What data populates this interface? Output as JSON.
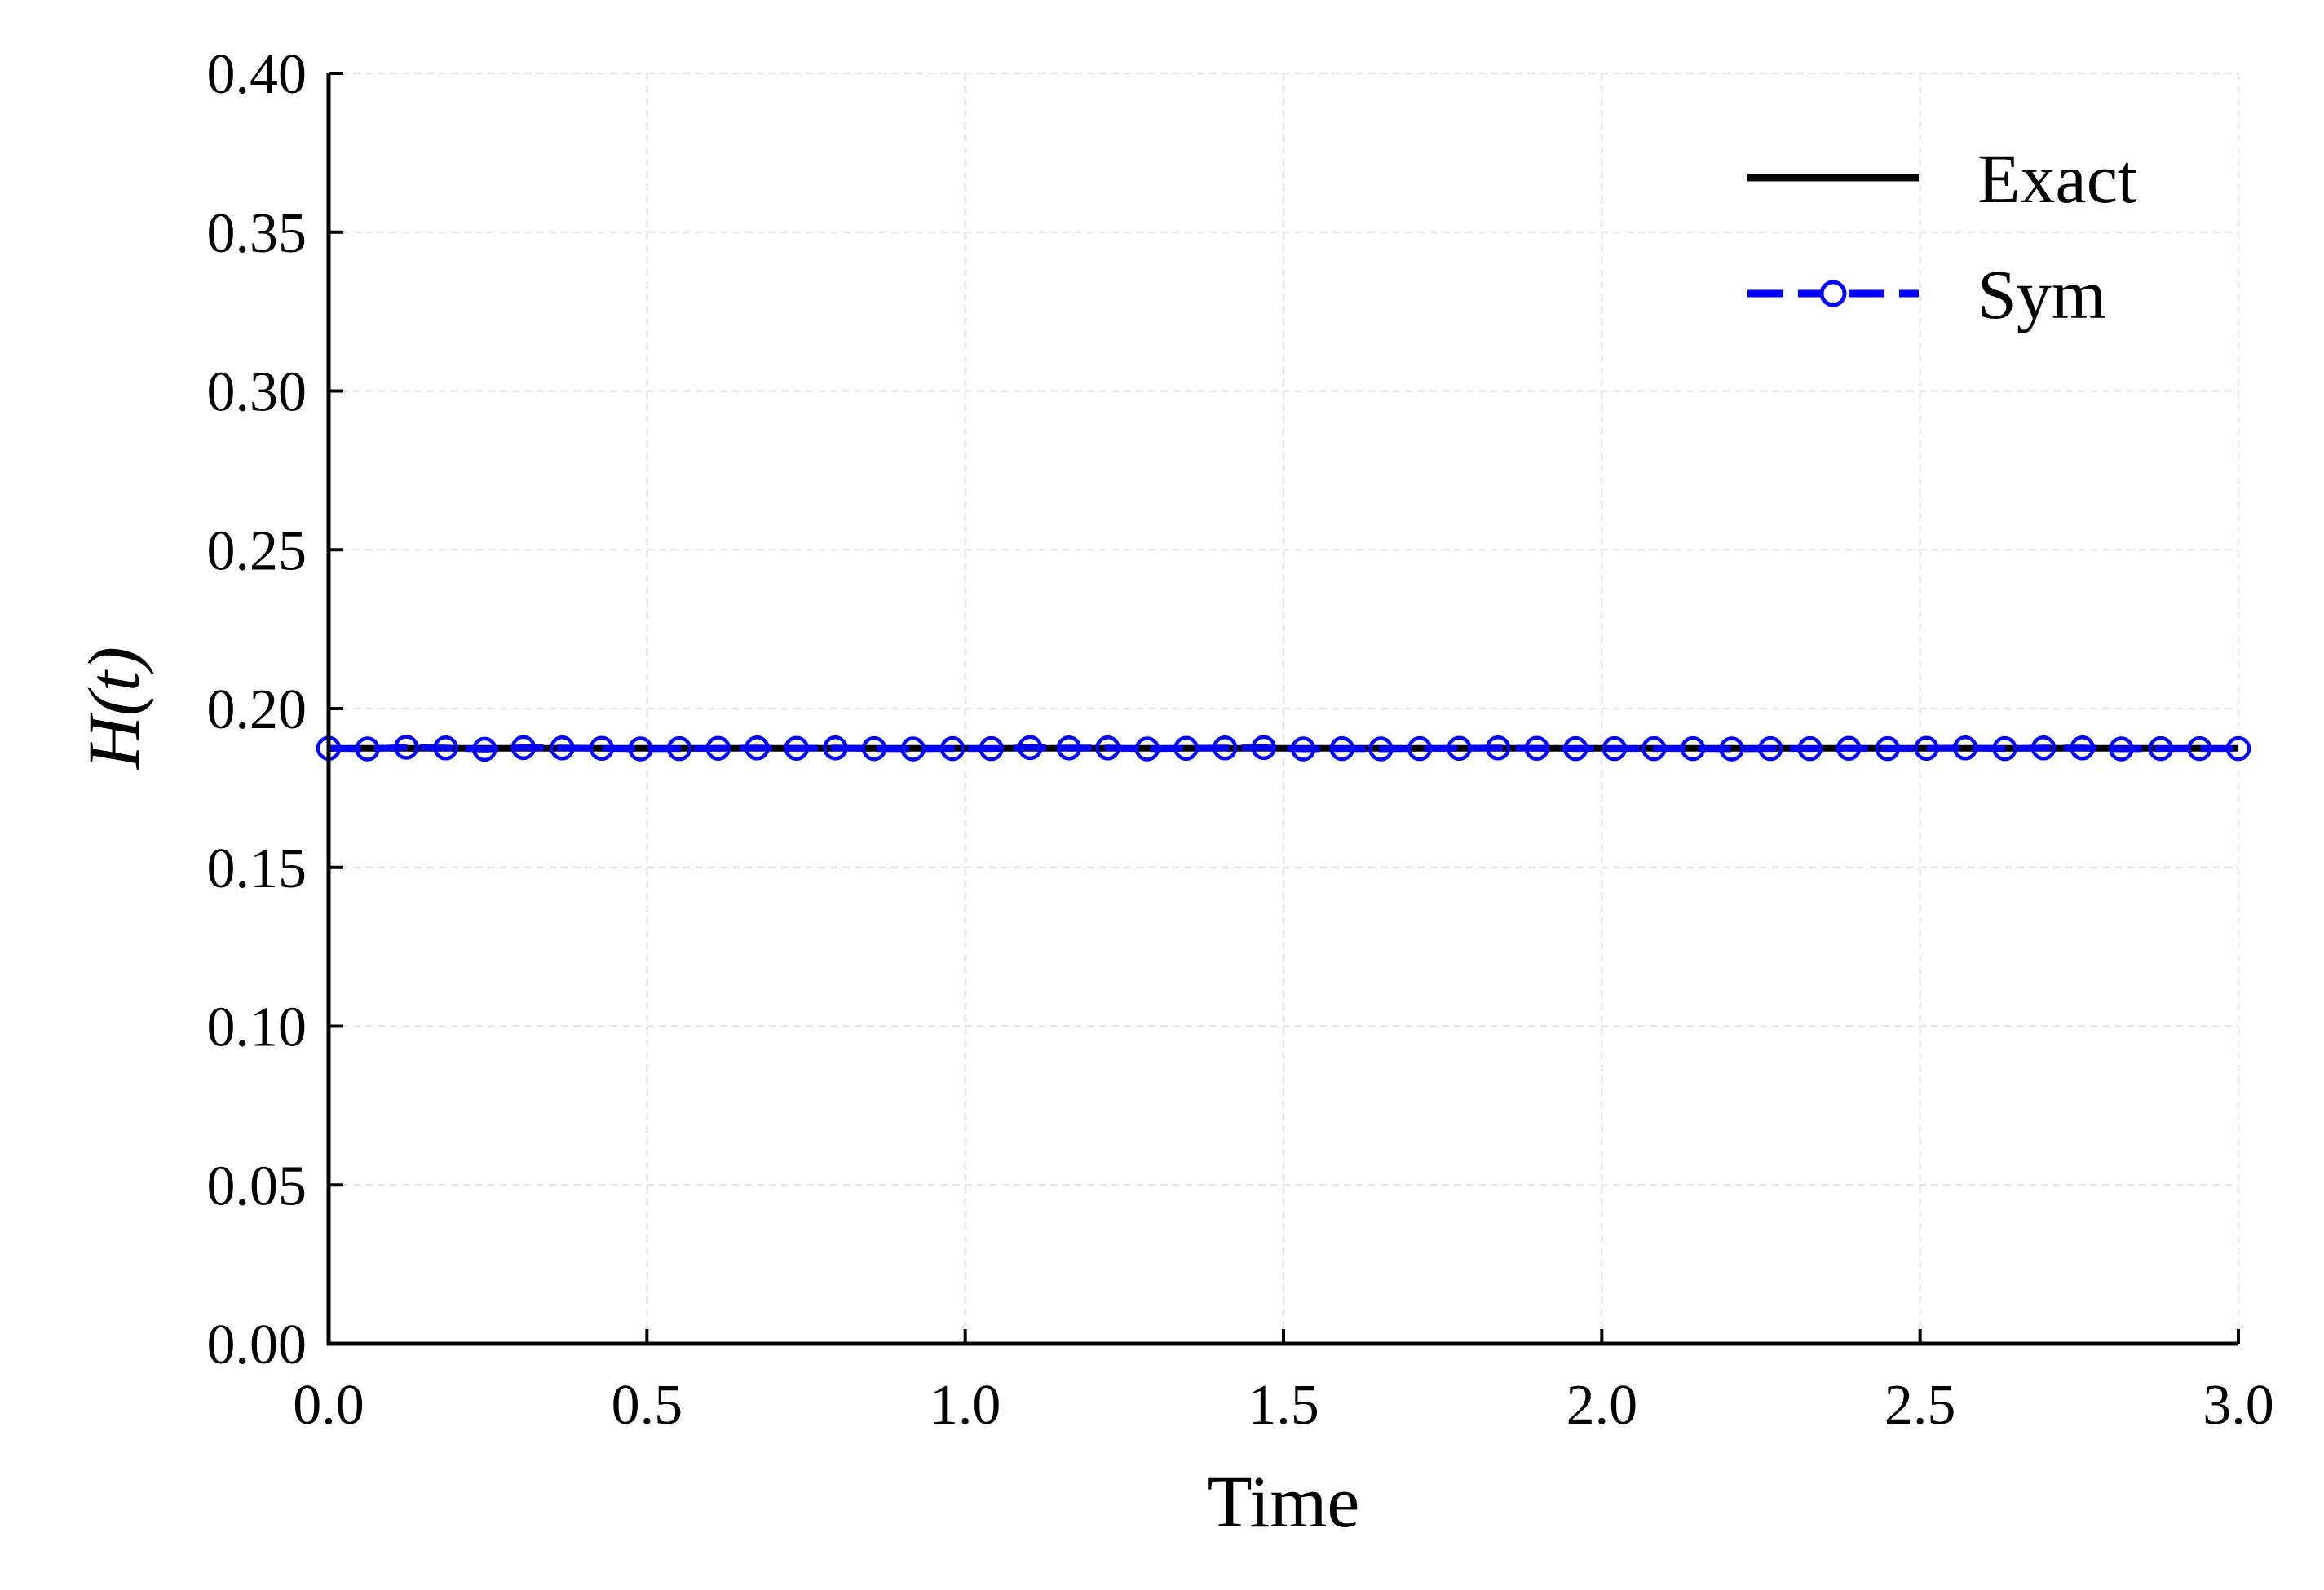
{
  "chart_data": {
    "type": "line",
    "xlabel": "Time",
    "ylabel": "H(t)",
    "xlim": [
      0.0,
      3.0
    ],
    "ylim": [
      0.0,
      0.4
    ],
    "xticks": [
      "0.0",
      "0.5",
      "1.0",
      "1.5",
      "2.0",
      "2.5",
      "3.0"
    ],
    "yticks": [
      "0.00",
      "0.05",
      "0.10",
      "0.15",
      "0.20",
      "0.25",
      "0.30",
      "0.35",
      "0.40"
    ],
    "grid": true,
    "legend_position": "top-right",
    "series": [
      {
        "name": "Exact",
        "style": "solid",
        "color": "#000000",
        "x": [
          0.0,
          3.0
        ],
        "y": [
          0.1875,
          0.1875
        ]
      },
      {
        "name": "Sym",
        "style": "dashed-circle-markers",
        "color": "#0000ff",
        "x": [
          0.0,
          0.061,
          0.122,
          0.184,
          0.245,
          0.306,
          0.367,
          0.429,
          0.49,
          0.551,
          0.612,
          0.673,
          0.735,
          0.796,
          0.857,
          0.918,
          0.98,
          1.041,
          1.102,
          1.163,
          1.224,
          1.286,
          1.347,
          1.408,
          1.469,
          1.531,
          1.592,
          1.653,
          1.714,
          1.776,
          1.837,
          1.898,
          1.959,
          2.02,
          2.082,
          2.143,
          2.204,
          2.265,
          2.327,
          2.388,
          2.449,
          2.51,
          2.571,
          2.633,
          2.694,
          2.755,
          2.816,
          2.878,
          2.939,
          3.0
        ],
        "y": [
          0.1875,
          0.1873,
          0.1878,
          0.1876,
          0.1872,
          0.1877,
          0.1876,
          0.1875,
          0.1873,
          0.1874,
          0.1875,
          0.1876,
          0.1875,
          0.1876,
          0.1874,
          0.1873,
          0.1874,
          0.1874,
          0.1877,
          0.1876,
          0.1876,
          0.1873,
          0.1875,
          0.1876,
          0.1877,
          0.1873,
          0.1874,
          0.1873,
          0.1874,
          0.1875,
          0.1876,
          0.1875,
          0.1874,
          0.1874,
          0.1874,
          0.1874,
          0.1873,
          0.1874,
          0.1874,
          0.1875,
          0.1874,
          0.1875,
          0.1876,
          0.1874,
          0.1876,
          0.1876,
          0.1873,
          0.1874,
          0.1874,
          0.1874
        ]
      }
    ]
  }
}
